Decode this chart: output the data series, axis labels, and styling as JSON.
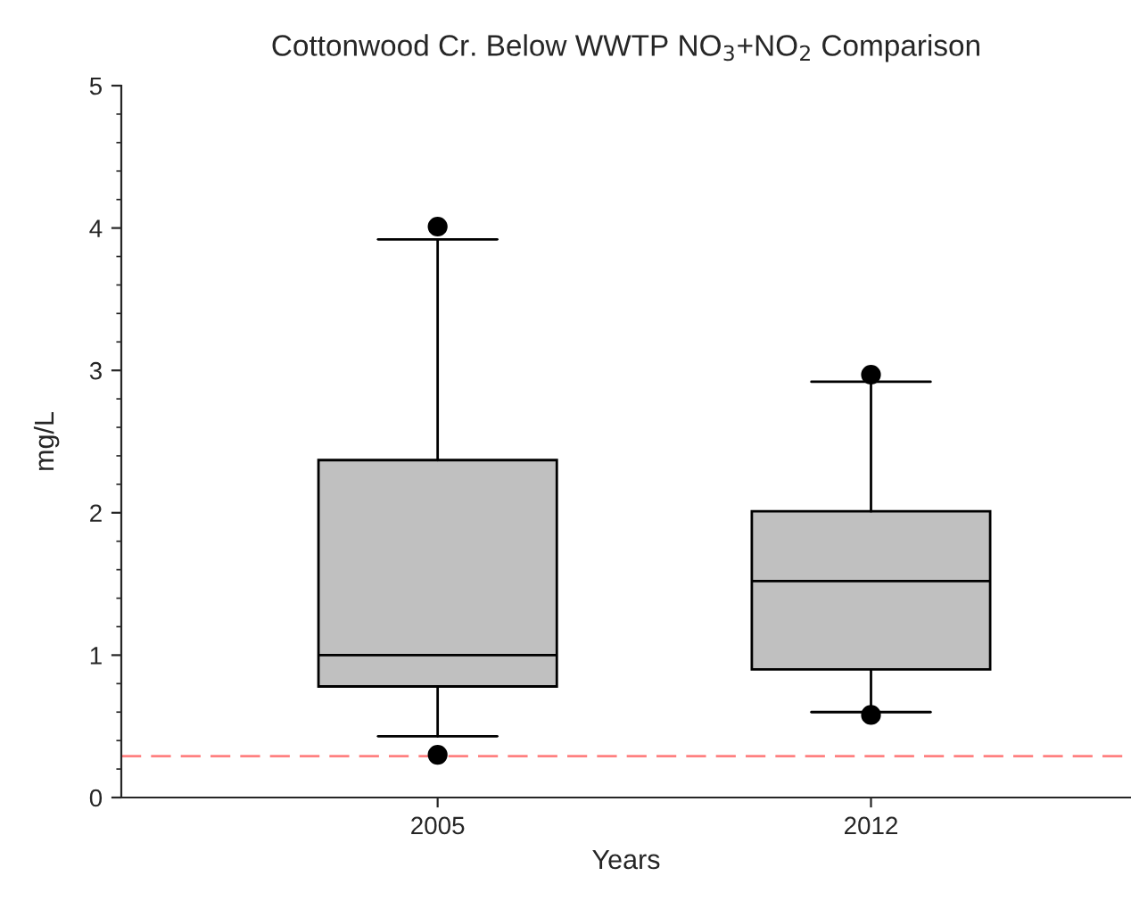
{
  "chart_data": {
    "type": "box",
    "title": "Cottonwood Cr. Below WWTP NO$_{3}$+NO$_{2}$ Comparison",
    "xlabel": "Years",
    "ylabel": "mg/L",
    "categories": [
      "2005",
      "2012"
    ],
    "boxes": [
      {
        "low": 0.43,
        "q1": 0.78,
        "median": 1.0,
        "q3": 2.37,
        "high": 3.92,
        "outliers": [
          4.01,
          0.3
        ]
      },
      {
        "low": 0.6,
        "q1": 0.9,
        "median": 1.52,
        "q3": 2.01,
        "high": 2.92,
        "outliers": [
          2.97,
          0.58
        ]
      }
    ],
    "color": "#c0c0c0",
    "ylim": [
      0,
      5
    ],
    "yticks": [
      0,
      1,
      2,
      3,
      4,
      5
    ],
    "ref_lines": [
      {
        "axis": "y",
        "value": 0.29,
        "color": "#ff8080",
        "line_style": "dashed"
      }
    ],
    "grid": false
  }
}
